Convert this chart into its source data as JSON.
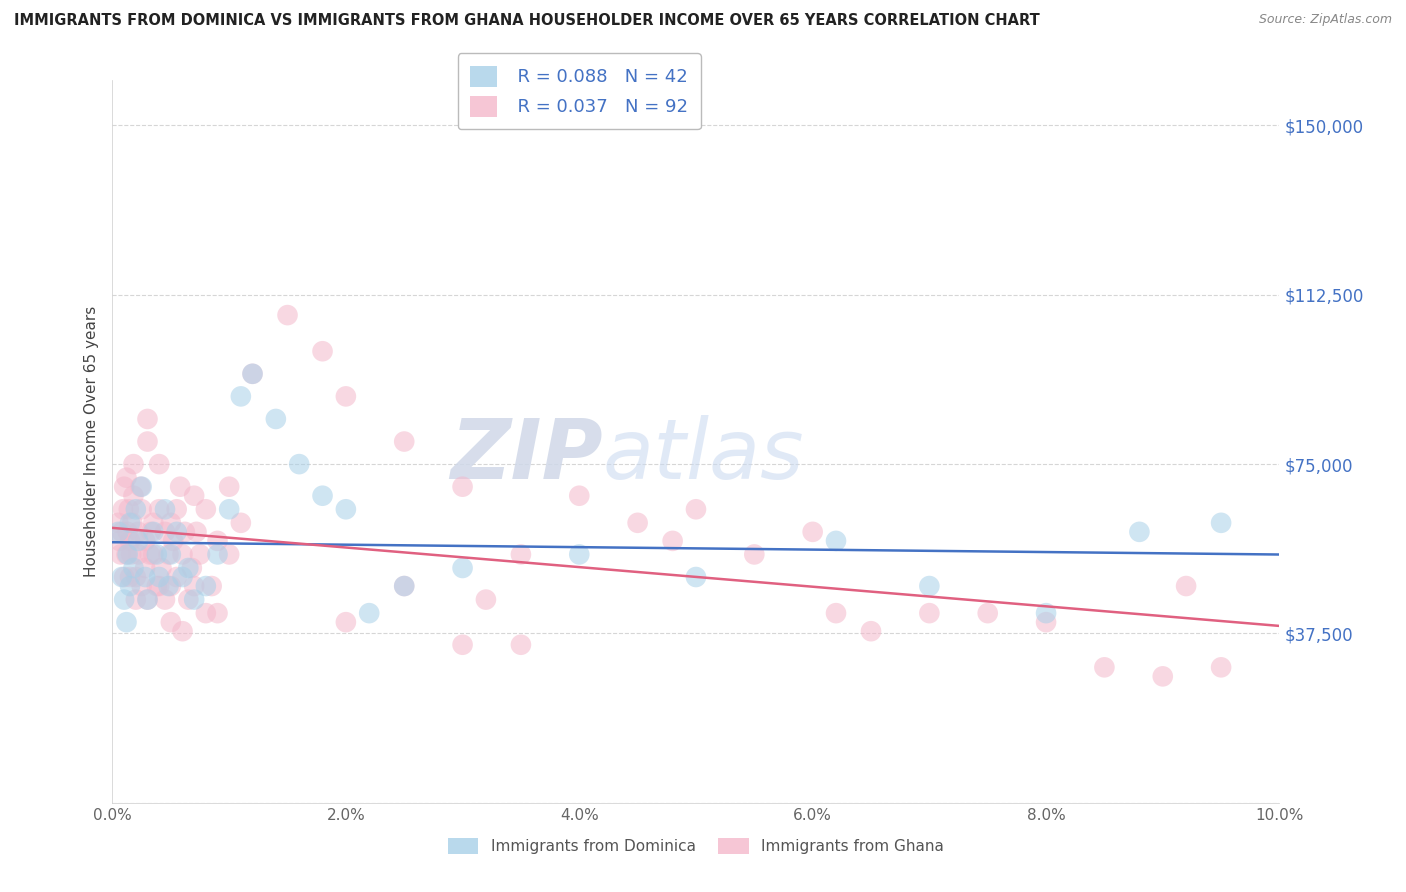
{
  "title": "IMMIGRANTS FROM DOMINICA VS IMMIGRANTS FROM GHANA HOUSEHOLDER INCOME OVER 65 YEARS CORRELATION CHART",
  "source": "Source: ZipAtlas.com",
  "ylabel": "Householder Income Over 65 years",
  "xlim": [
    0.0,
    10.0
  ],
  "ylim": [
    0,
    160000
  ],
  "yticks": [
    0,
    37500,
    75000,
    112500,
    150000
  ],
  "ytick_labels": [
    "",
    "$37,500",
    "$75,000",
    "$112,500",
    "$150,000"
  ],
  "xticks": [
    0.0,
    2.0,
    4.0,
    6.0,
    8.0,
    10.0
  ],
  "xtick_labels": [
    "0.0%",
    "2.0%",
    "4.0%",
    "6.0%",
    "8.0%",
    "10.0%"
  ],
  "dominica_R": 0.088,
  "dominica_N": 42,
  "ghana_R": 0.037,
  "ghana_N": 92,
  "dominica_color": "#a8d0e8",
  "ghana_color": "#f4b8cb",
  "dominica_line_color": "#4472c4",
  "ghana_line_color": "#e06080",
  "watermark_zip": "ZIP",
  "watermark_atlas": "atlas",
  "bg_color": "#ffffff",
  "grid_color": "#cccccc",
  "title_color": "#222222",
  "ylabel_color": "#444444",
  "ytick_color": "#4472c4",
  "xtick_color": "#666666",
  "legend_text_color": "#4472c4",
  "source_color": "#888888",
  "bottom_legend_color": "#555555",
  "dominica_label": "Immigrants from Dominica",
  "ghana_label": "Immigrants from Ghana",
  "dom_x": [
    0.05,
    0.08,
    0.1,
    0.12,
    0.13,
    0.15,
    0.15,
    0.18,
    0.2,
    0.22,
    0.25,
    0.28,
    0.3,
    0.35,
    0.38,
    0.4,
    0.45,
    0.48,
    0.5,
    0.55,
    0.6,
    0.65,
    0.7,
    0.8,
    0.9,
    1.0,
    1.1,
    1.2,
    1.4,
    1.6,
    1.8,
    2.0,
    2.2,
    2.5,
    3.0,
    4.0,
    5.0,
    6.2,
    7.0,
    8.0,
    8.8,
    9.5
  ],
  "dom_y": [
    60000,
    50000,
    45000,
    40000,
    55000,
    62000,
    48000,
    52000,
    65000,
    58000,
    70000,
    50000,
    45000,
    60000,
    55000,
    50000,
    65000,
    48000,
    55000,
    60000,
    50000,
    52000,
    45000,
    48000,
    55000,
    65000,
    90000,
    95000,
    85000,
    75000,
    68000,
    65000,
    42000,
    48000,
    52000,
    55000,
    50000,
    58000,
    48000,
    42000,
    60000,
    62000
  ],
  "gha_x": [
    0.05,
    0.06,
    0.07,
    0.08,
    0.09,
    0.1,
    0.1,
    0.12,
    0.12,
    0.13,
    0.14,
    0.15,
    0.15,
    0.16,
    0.17,
    0.18,
    0.18,
    0.2,
    0.2,
    0.22,
    0.22,
    0.24,
    0.25,
    0.25,
    0.28,
    0.28,
    0.3,
    0.3,
    0.32,
    0.33,
    0.35,
    0.35,
    0.38,
    0.4,
    0.4,
    0.42,
    0.45,
    0.45,
    0.48,
    0.5,
    0.5,
    0.52,
    0.55,
    0.55,
    0.58,
    0.6,
    0.62,
    0.65,
    0.68,
    0.7,
    0.72,
    0.75,
    0.8,
    0.85,
    0.9,
    1.0,
    1.1,
    1.2,
    1.5,
    1.8,
    2.0,
    2.5,
    3.0,
    3.2,
    3.5,
    4.0,
    4.5,
    4.8,
    5.0,
    5.5,
    6.0,
    6.2,
    6.5,
    7.0,
    7.5,
    8.0,
    8.5,
    9.0,
    9.2,
    9.5,
    2.0,
    2.5,
    3.0,
    3.5,
    0.3,
    0.4,
    0.5,
    0.6,
    0.7,
    0.8,
    0.9,
    1.0
  ],
  "gha_y": [
    62000,
    58000,
    55000,
    60000,
    65000,
    50000,
    70000,
    55000,
    72000,
    60000,
    65000,
    58000,
    50000,
    55000,
    62000,
    68000,
    75000,
    50000,
    45000,
    60000,
    55000,
    70000,
    65000,
    48000,
    58000,
    52000,
    80000,
    85000,
    55000,
    60000,
    62000,
    55000,
    48000,
    75000,
    65000,
    52000,
    60000,
    45000,
    55000,
    62000,
    48000,
    58000,
    65000,
    50000,
    70000,
    55000,
    60000,
    45000,
    52000,
    68000,
    60000,
    55000,
    65000,
    48000,
    58000,
    70000,
    62000,
    95000,
    108000,
    100000,
    90000,
    80000,
    70000,
    45000,
    55000,
    68000,
    62000,
    58000,
    65000,
    55000,
    60000,
    42000,
    38000,
    42000,
    42000,
    40000,
    30000,
    28000,
    48000,
    30000,
    40000,
    48000,
    35000,
    35000,
    45000,
    48000,
    40000,
    38000,
    48000,
    42000,
    42000,
    55000
  ]
}
